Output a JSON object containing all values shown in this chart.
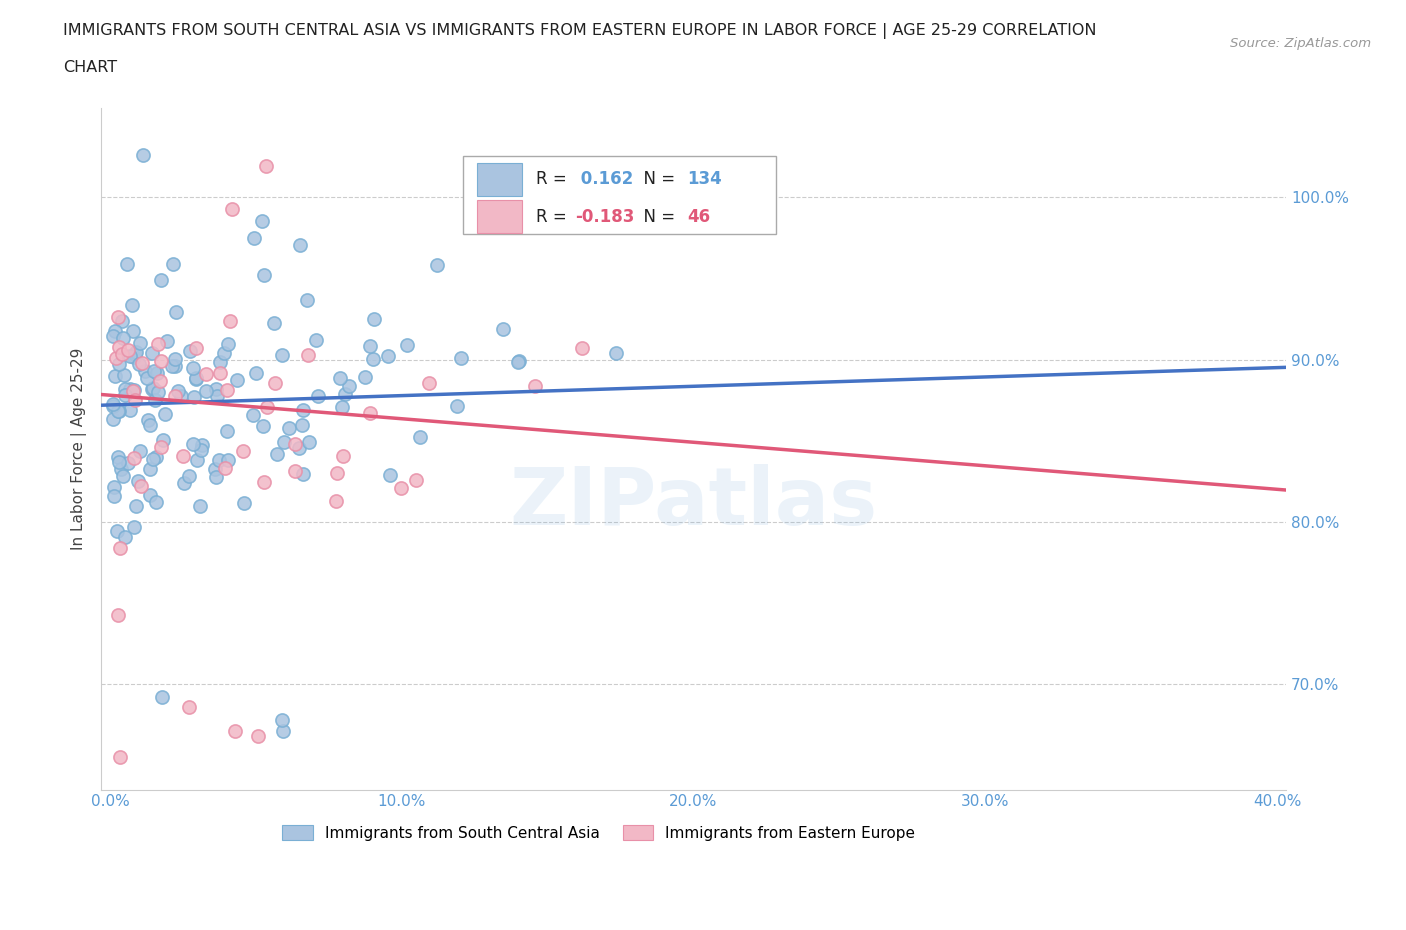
{
  "title_line1": "IMMIGRANTS FROM SOUTH CENTRAL ASIA VS IMMIGRANTS FROM EASTERN EUROPE IN LABOR FORCE | AGE 25-29 CORRELATION",
  "title_line2": "CHART",
  "source_text": "Source: ZipAtlas.com",
  "ylabel": "In Labor Force | Age 25-29",
  "xlim": [
    -0.003,
    0.403
  ],
  "ylim": [
    0.635,
    1.055
  ],
  "yticks": [
    0.7,
    0.8,
    0.9,
    1.0
  ],
  "ytick_labels": [
    "70.0%",
    "80.0%",
    "90.0%",
    "100.0%"
  ],
  "xticks": [
    0.0,
    0.1,
    0.2,
    0.3,
    0.4
  ],
  "xtick_labels": [
    "0.0%",
    "10.0%",
    "20.0%",
    "30.0%",
    "40.0%"
  ],
  "legend_label1": "Immigrants from South Central Asia",
  "legend_label2": "Immigrants from Eastern Europe",
  "R1": 0.162,
  "N1": 134,
  "R2": -0.183,
  "N2": 46,
  "color1": "#aac4e0",
  "color1_edge": "#7aafd4",
  "color2": "#f2b8c6",
  "color2_edge": "#e890a8",
  "trendline1_color": "#4472c4",
  "trendline2_color": "#e05878",
  "tick_color": "#5b9bd5",
  "grid_color": "#cccccc",
  "watermark_color": "#5b9bd5",
  "watermark_alpha": 0.12,
  "title_color": "#222222",
  "source_color": "#999999"
}
